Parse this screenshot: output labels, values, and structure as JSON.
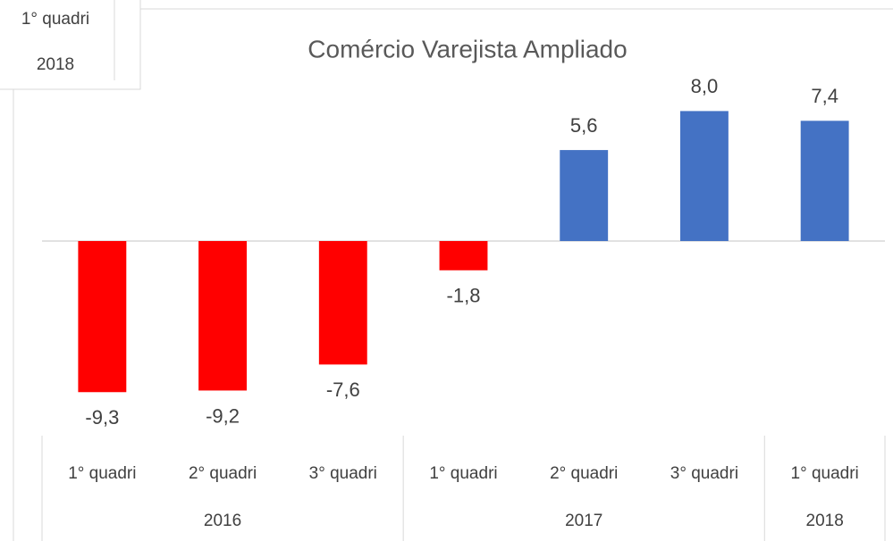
{
  "chart_data": {
    "type": "bar",
    "title": "Comércio Varejista Ampliado",
    "categories": [
      "1° quadri",
      "2° quadri",
      "3° quadri",
      "1° quadri",
      "2° quadri",
      "3° quadri",
      "1° quadri"
    ],
    "groups": [
      "2016",
      null,
      null,
      "2017",
      null,
      null,
      "2018"
    ],
    "values": [
      -9.3,
      -9.2,
      -7.6,
      -1.8,
      5.6,
      8.0,
      7.4
    ],
    "value_labels": [
      "-9,3",
      "-9,2",
      "-7,6",
      "-1,8",
      "5,6",
      "8,0",
      "7,4"
    ],
    "colors": [
      "#ff0000",
      "#ff0000",
      "#ff0000",
      "#ff0000",
      "#4472c4",
      "#4472c4",
      "#4472c4"
    ],
    "ylim": [
      -10,
      10
    ],
    "overlay_labels": [
      "1° quadri",
      "2018"
    ]
  }
}
